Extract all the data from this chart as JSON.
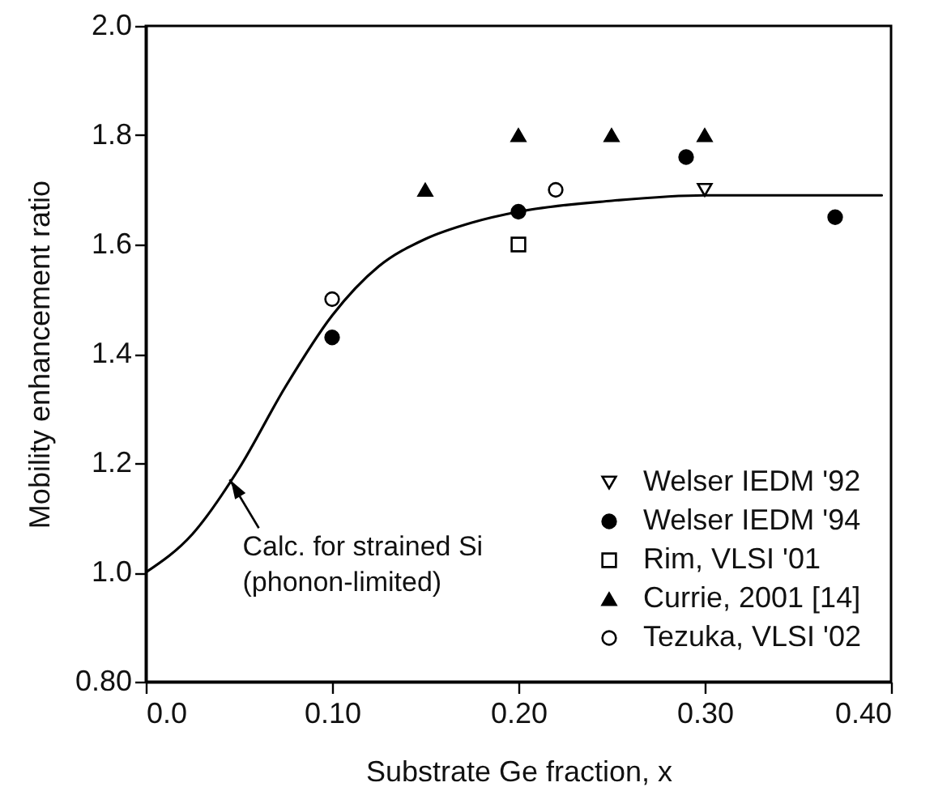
{
  "chart_data": {
    "type": "scatter",
    "xlabel": "Substrate Ge fraction, x",
    "ylabel": "Mobility enhancement ratio",
    "xlim": [
      0,
      0.4
    ],
    "xticks": [
      {
        "value": 0,
        "label": "0.0"
      },
      {
        "value": 0.1,
        "label": "0.10"
      },
      {
        "value": 0.2,
        "label": "0.20"
      },
      {
        "value": 0.3,
        "label": "0.30"
      },
      {
        "value": 0.4,
        "label": "0.40"
      }
    ],
    "ylim": [
      0.8,
      2.0
    ],
    "yticks": [
      {
        "value": 0.8,
        "label": "0.80"
      },
      {
        "value": 1.0,
        "label": "1.0"
      },
      {
        "value": 1.2,
        "label": "1.2"
      },
      {
        "value": 1.4,
        "label": "1.4"
      },
      {
        "value": 1.6,
        "label": "1.6"
      },
      {
        "value": 1.8,
        "label": "1.8"
      },
      {
        "value": 2.0,
        "label": "2.0"
      }
    ],
    "grid": false,
    "legend": "bottom right",
    "series": [
      {
        "type": "line",
        "color": "#000000",
        "marker": "none",
        "line_style": "solid",
        "x": [
          0,
          0.025,
          0.05,
          0.075,
          0.1,
          0.125,
          0.15,
          0.175,
          0.2,
          0.25,
          0.3,
          0.395
        ],
        "values": [
          1.0,
          1.07,
          1.19,
          1.34,
          1.47,
          1.56,
          1.61,
          1.64,
          1.66,
          1.68,
          1.69,
          1.69
        ]
      },
      {
        "name": "Welser IEDM '92",
        "color": "#000000",
        "marker": "triangle-down-open",
        "x": [
          0.3
        ],
        "values": [
          1.7
        ]
      },
      {
        "name": "Welser IEDM '94",
        "color": "#000000",
        "marker": "circle",
        "x": [
          0.1,
          0.2,
          0.29,
          0.37
        ],
        "values": [
          1.43,
          1.66,
          1.76,
          1.65
        ]
      },
      {
        "name": "Rim, VLSI '01",
        "color": "#000000",
        "marker": "square-open",
        "x": [
          0.2
        ],
        "values": [
          1.6
        ]
      },
      {
        "name": "Currie, 2001 [14]",
        "color": "#000000",
        "marker": "triangle",
        "x": [
          0.15,
          0.2,
          0.25,
          0.3
        ],
        "values": [
          1.7,
          1.8,
          1.8,
          1.8
        ]
      },
      {
        "name": "Tezuka, VLSI '02",
        "color": "#000000",
        "marker": "circle-open",
        "x": [
          0.1,
          0.22
        ],
        "values": [
          1.5,
          1.7
        ]
      }
    ],
    "annotations": [
      {
        "text": "Calc. for strained Si\n(phonon-limited)",
        "x": 0.045,
        "y": 1.17
      }
    ]
  }
}
